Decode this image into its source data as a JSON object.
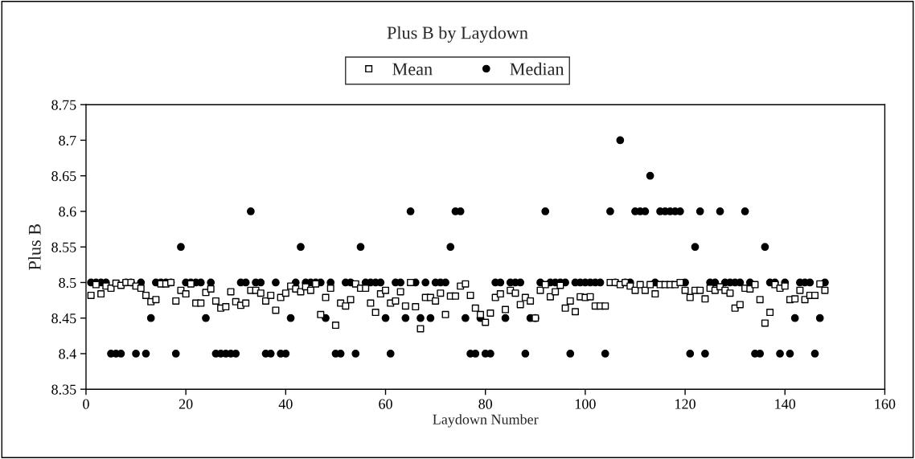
{
  "chart_data": {
    "type": "scatter",
    "title": "Plus B by Laydown",
    "xlabel": "Laydown Number",
    "ylabel": "Plus B",
    "x": [
      1,
      2,
      3,
      4,
      5,
      6,
      7,
      8,
      9,
      10,
      11,
      12,
      13,
      14,
      15,
      16,
      17,
      18,
      19,
      20,
      21,
      22,
      23,
      24,
      25,
      26,
      27,
      28,
      29,
      30,
      31,
      32,
      33,
      34,
      35,
      36,
      37,
      38,
      39,
      40,
      41,
      42,
      43,
      44,
      45,
      46,
      47,
      48,
      49,
      50,
      51,
      52,
      53,
      54,
      55,
      56,
      57,
      58,
      59,
      60,
      61,
      62,
      63,
      64,
      65,
      66,
      67,
      68,
      69,
      70,
      71,
      72,
      73,
      74,
      75,
      76,
      77,
      78,
      79,
      80,
      81,
      82,
      83,
      84,
      85,
      86,
      87,
      88,
      89,
      90,
      91,
      92,
      93,
      94,
      95,
      96,
      97,
      98,
      99,
      100,
      101,
      102,
      103,
      104,
      105,
      106,
      107,
      108,
      109,
      110,
      111,
      112,
      113,
      114,
      115,
      116,
      117,
      118,
      119,
      120,
      121,
      122,
      123,
      124,
      125,
      126,
      127,
      128,
      129,
      130,
      131,
      132,
      133,
      134,
      135,
      136,
      137,
      138,
      139,
      140,
      141,
      142,
      143,
      144,
      145,
      146,
      147,
      148
    ],
    "series": [
      {
        "name": "Mean",
        "color": "#000000",
        "marker": "square",
        "values": [
          8.482,
          8.497,
          8.484,
          8.495,
          8.492,
          8.499,
          8.496,
          8.5,
          8.5,
          8.495,
          8.492,
          8.482,
          8.473,
          8.476,
          8.498,
          8.498,
          8.5,
          8.474,
          8.489,
          8.484,
          8.498,
          8.471,
          8.471,
          8.486,
          8.491,
          8.474,
          8.464,
          8.466,
          8.487,
          8.473,
          8.468,
          8.471,
          8.489,
          8.489,
          8.485,
          8.474,
          8.482,
          8.461,
          8.479,
          8.485,
          8.495,
          8.491,
          8.487,
          8.494,
          8.489,
          8.498,
          8.455,
          8.479,
          8.492,
          8.44,
          8.471,
          8.467,
          8.476,
          8.498,
          8.492,
          8.492,
          8.471,
          8.458,
          8.484,
          8.489,
          8.471,
          8.474,
          8.487,
          8.467,
          8.5,
          8.466,
          8.435,
          8.479,
          8.479,
          8.474,
          8.485,
          8.455,
          8.481,
          8.481,
          8.495,
          8.498,
          8.482,
          8.464,
          8.455,
          8.444,
          8.457,
          8.479,
          8.484,
          8.462,
          8.489,
          8.485,
          8.469,
          8.479,
          8.474,
          8.45,
          8.489,
          8.497,
          8.48,
          8.487,
          8.496,
          8.464,
          8.474,
          8.459,
          8.48,
          8.479,
          8.48,
          8.467,
          8.467,
          8.467,
          8.5,
          8.5,
          8.497,
          8.5,
          8.495,
          8.489,
          8.497,
          8.489,
          8.497,
          8.484,
          8.497,
          8.497,
          8.497,
          8.497,
          8.5,
          8.489,
          8.479,
          8.489,
          8.489,
          8.477,
          8.492,
          8.489,
          8.494,
          8.489,
          8.485,
          8.464,
          8.469,
          8.492,
          8.491,
          8.497,
          8.476,
          8.443,
          8.458,
          8.497,
          8.492,
          8.495,
          8.476,
          8.477,
          8.489,
          8.476,
          8.482,
          8.482,
          8.498,
          8.489
        ]
      },
      {
        "name": "Median",
        "color": "#000000",
        "marker": "circle",
        "values": [
          8.5,
          8.5,
          8.5,
          8.5,
          8.4,
          8.4,
          8.4,
          8.5,
          8.5,
          8.4,
          8.5,
          8.4,
          8.45,
          8.5,
          8.5,
          8.5,
          8.5,
          8.4,
          8.55,
          8.5,
          8.5,
          8.5,
          8.5,
          8.45,
          8.5,
          8.4,
          8.4,
          8.4,
          8.4,
          8.4,
          8.5,
          8.5,
          8.6,
          8.5,
          8.5,
          8.4,
          8.4,
          8.5,
          8.4,
          8.4,
          8.45,
          8.5,
          8.55,
          8.5,
          8.5,
          8.5,
          8.5,
          8.45,
          8.5,
          8.4,
          8.4,
          8.5,
          8.5,
          8.4,
          8.55,
          8.5,
          8.5,
          8.5,
          8.5,
          8.45,
          8.4,
          8.5,
          8.5,
          8.45,
          8.6,
          8.5,
          8.45,
          8.5,
          8.45,
          8.5,
          8.5,
          8.5,
          8.55,
          8.6,
          8.6,
          8.45,
          8.4,
          8.4,
          8.45,
          8.4,
          8.4,
          8.5,
          8.5,
          8.45,
          8.5,
          8.5,
          8.5,
          8.4,
          8.45,
          8.45,
          8.5,
          8.6,
          8.5,
          8.5,
          8.5,
          8.5,
          8.4,
          8.5,
          8.5,
          8.5,
          8.5,
          8.5,
          8.5,
          8.4,
          8.6,
          8.5,
          8.7,
          8.5,
          8.5,
          8.6,
          8.6,
          8.6,
          8.65,
          8.5,
          8.6,
          8.6,
          8.6,
          8.6,
          8.6,
          8.5,
          8.4,
          8.55,
          8.6,
          8.4,
          8.5,
          8.5,
          8.6,
          8.5,
          8.5,
          8.5,
          8.5,
          8.6,
          8.5,
          8.4,
          8.4,
          8.55,
          8.5,
          8.5,
          8.4,
          8.5,
          8.4,
          8.45,
          8.5,
          8.5,
          8.5,
          8.4,
          8.45,
          8.5
        ]
      }
    ],
    "xlim": [
      0,
      160
    ],
    "xticks": [
      0,
      20,
      40,
      60,
      80,
      100,
      120,
      140,
      160
    ],
    "ylim": [
      8.35,
      8.75
    ],
    "yticks": [
      8.35,
      8.4,
      8.45,
      8.5,
      8.55,
      8.6,
      8.65,
      8.7,
      8.75
    ],
    "legend": "top",
    "grid": false
  }
}
